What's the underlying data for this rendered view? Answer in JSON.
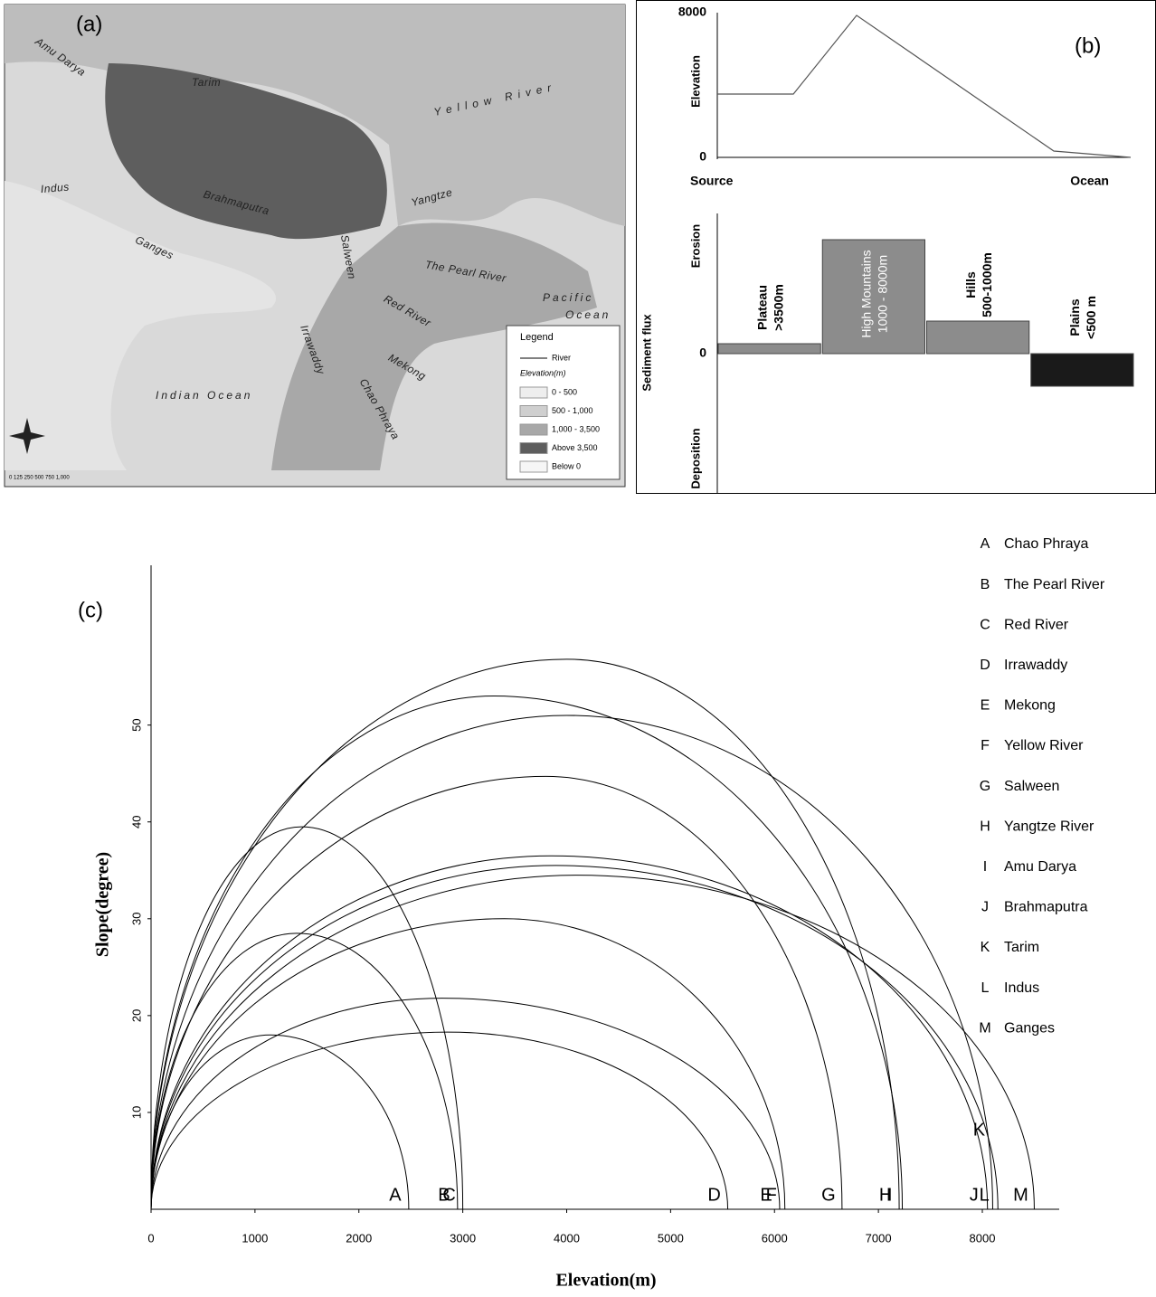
{
  "map": {
    "panel_label": "(a)",
    "rivers": [
      "Amu Darya",
      "Tarim",
      "Yellow River",
      "Indus",
      "Brahmaputra",
      "Ganges",
      "Yangtze",
      "The Pearl River",
      "Red River",
      "Irrawaddy",
      "Salween",
      "Mekong",
      "Chao Phraya"
    ],
    "oceans": [
      "Pacific",
      "Ocean",
      "Indian Ocean"
    ],
    "legend": {
      "title": "Legend",
      "river": "River",
      "subtitle": "Elevation(m)",
      "items": [
        "0 - 500",
        "500 - 1,000",
        "1,000 - 3,500",
        "Above 3,500",
        "Below 0"
      ],
      "colors": [
        "#eeeeee",
        "#cfcfcf",
        "#a8a8a8",
        "#5e5e5e",
        "#f6f6f6"
      ]
    },
    "scale": "0 125 250    500     750    1,000"
  },
  "chart_data": [
    {
      "type": "line",
      "panel_label": "(b)",
      "y_label": "Elevation",
      "categories": [
        "Source",
        "Ocean"
      ],
      "x": [
        0,
        0.184,
        0.337,
        0.814,
        1
      ],
      "values": [
        3500,
        3500,
        7850,
        350,
        0
      ],
      "color": "#555555",
      "ylim": [
        0,
        8000
      ],
      "yticks": [
        0,
        8000
      ]
    },
    {
      "type": "bar",
      "y_label": "Sediment flux",
      "top_label": "Erosion",
      "bottom_label": "Deposition",
      "categories": [
        [
          "Plateau",
          ">3500m"
        ],
        [
          "High Mountains",
          "1000 - 8000m"
        ],
        [
          "Hills",
          "500-1000m"
        ],
        [
          "Plains",
          "<500 m"
        ]
      ],
      "values": [
        11,
        126,
        36,
        -36
      ],
      "colors": [
        "#8c8c8c",
        "#8c8c8c",
        "#8c8c8c",
        "#1a1a1a"
      ],
      "ylim": [
        -154,
        155
      ],
      "yticks": [
        0
      ]
    },
    {
      "type": "arcs",
      "panel_label": "(c)",
      "x_label": "Elevation(m)",
      "y_label": "Slope(degree)",
      "xlim": [
        0,
        8740
      ],
      "ylim": [
        0,
        66.5
      ],
      "xticks": [
        0,
        1000,
        2000,
        3000,
        4000,
        5000,
        6000,
        7000,
        8000
      ],
      "yticks": [
        10,
        20,
        30,
        40,
        50
      ],
      "series": [
        {
          "letter": "A",
          "name": "Chao Phraya",
          "peak_elevation": 1150,
          "peak_slope": 18,
          "end_elevation": 2480
        },
        {
          "letter": "B",
          "name": "The Pearl River",
          "peak_elevation": 1400,
          "peak_slope": 28.5,
          "end_elevation": 2950
        },
        {
          "letter": "C",
          "name": "Red River",
          "peak_elevation": 1450,
          "peak_slope": 39.5,
          "end_elevation": 3000
        },
        {
          "letter": "D",
          "name": "Irrawaddy",
          "peak_elevation": 2850,
          "peak_slope": 18.3,
          "end_elevation": 5550
        },
        {
          "letter": "E",
          "name": "Mekong",
          "peak_elevation": 2800,
          "peak_slope": 21.8,
          "end_elevation": 6050
        },
        {
          "letter": "F",
          "name": "Yellow River",
          "peak_elevation": 3400,
          "peak_slope": 30,
          "end_elevation": 6100
        },
        {
          "letter": "G",
          "name": "Salween",
          "peak_elevation": 3800,
          "peak_slope": 44.7,
          "end_elevation": 6650
        },
        {
          "letter": "H",
          "name": "Yangtze River",
          "peak_elevation": 4000,
          "peak_slope": 56.8,
          "end_elevation": 7200
        },
        {
          "letter": "I",
          "name": "Amu Darya",
          "peak_elevation": 3300,
          "peak_slope": 53,
          "end_elevation": 7230
        },
        {
          "letter": "J",
          "name": "Brahmaputra",
          "peak_elevation": 3850,
          "peak_slope": 36.5,
          "end_elevation": 8050
        },
        {
          "letter": "K",
          "name": "Tarim",
          "peak_elevation": 4000,
          "peak_slope": 51,
          "end_elevation": 8100
        },
        {
          "letter": "L",
          "name": "Indus",
          "peak_elevation": 3900,
          "peak_slope": 35.5,
          "end_elevation": 8150
        },
        {
          "letter": "M",
          "name": "Ganges",
          "peak_elevation": 4100,
          "peak_slope": 34.5,
          "end_elevation": 8500
        }
      ]
    }
  ]
}
